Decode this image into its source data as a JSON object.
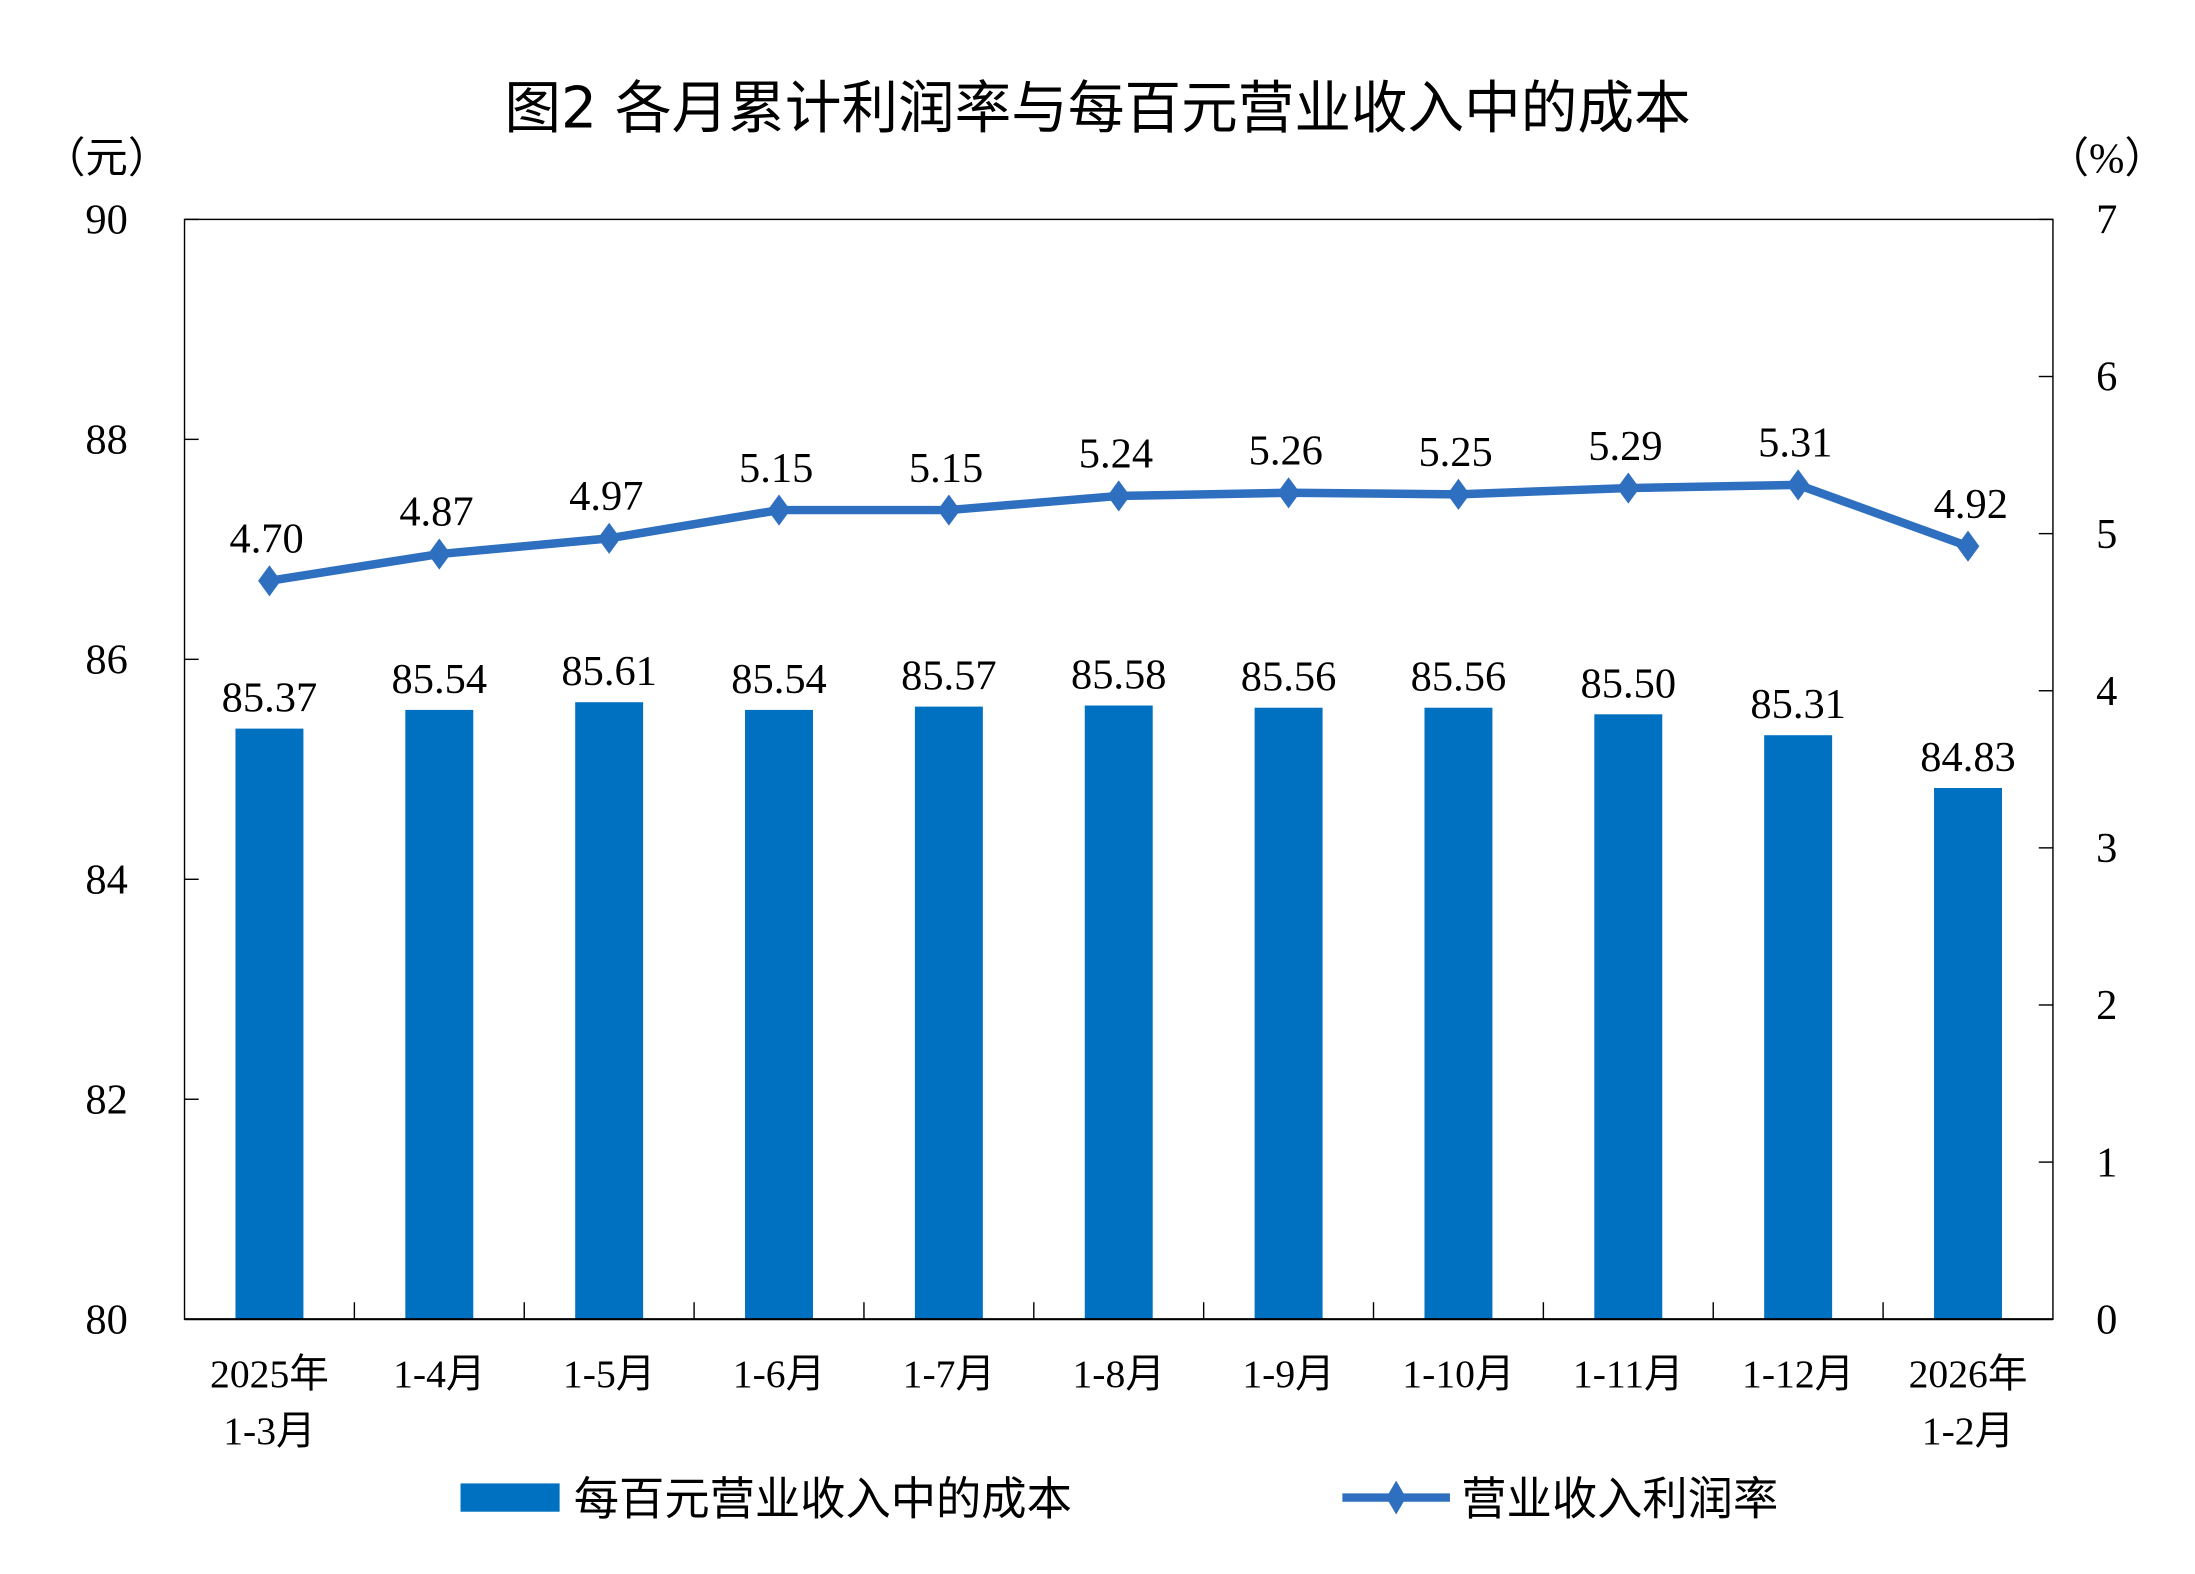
{
  "chart_data": {
    "type": "bar+line",
    "title": "图2  各月累计利润率与每百元营业收入中的成本",
    "left_unit": "（元）",
    "right_unit": "（%）",
    "categories": [
      [
        "2025年",
        "1-3月"
      ],
      [
        "1-4月"
      ],
      [
        "1-5月"
      ],
      [
        "1-6月"
      ],
      [
        "1-7月"
      ],
      [
        "1-8月"
      ],
      [
        "1-9月"
      ],
      [
        "1-10月"
      ],
      [
        "1-11月"
      ],
      [
        "1-12月"
      ],
      [
        "2026年",
        "1-2月"
      ]
    ],
    "left_axis": {
      "range": [
        80,
        90
      ],
      "ticks": [
        80,
        82,
        84,
        86,
        88,
        90
      ]
    },
    "right_axis": {
      "range": [
        0,
        7
      ],
      "ticks": [
        0,
        1,
        2,
        3,
        4,
        5,
        6,
        7
      ]
    },
    "series": [
      {
        "name": "每百元营业收入中的成本",
        "type": "bar",
        "axis": "left",
        "color": "#0070C0",
        "values": [
          85.37,
          85.54,
          85.61,
          85.54,
          85.57,
          85.58,
          85.56,
          85.56,
          85.5,
          85.31,
          84.83
        ],
        "labels": [
          "85.37",
          "85.54",
          "85.61",
          "85.54",
          "85.57",
          "85.58",
          "85.56",
          "85.56",
          "85.50",
          "85.31",
          "84.83"
        ]
      },
      {
        "name": "营业收入利润率",
        "type": "line",
        "axis": "right",
        "color": "#2E6FC0",
        "marker": "diamond",
        "values": [
          4.7,
          4.87,
          4.97,
          5.15,
          5.15,
          5.24,
          5.26,
          5.25,
          5.29,
          5.31,
          4.92
        ],
        "labels": [
          "4.70",
          "4.87",
          "4.97",
          "5.15",
          "5.15",
          "5.24",
          "5.26",
          "5.25",
          "5.29",
          "5.31",
          "4.92"
        ]
      }
    ],
    "legend": "bottom",
    "grid": false
  }
}
